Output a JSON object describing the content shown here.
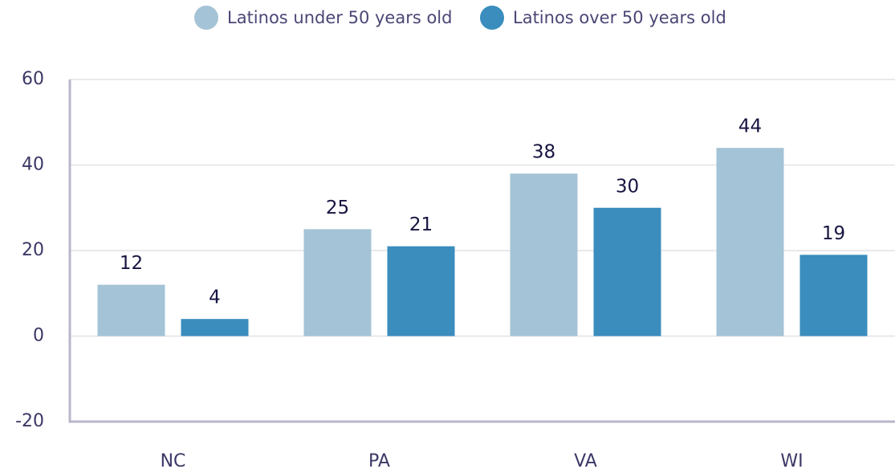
{
  "chart_data": {
    "type": "bar",
    "categories": [
      "NC",
      "PA",
      "VA",
      "WI"
    ],
    "series": [
      {
        "name": "Latinos under 50 years old",
        "color": "#a4c3d6",
        "values": [
          12,
          25,
          38,
          44
        ]
      },
      {
        "name": "Latinos over 50 years old",
        "color": "#3a8dbd",
        "values": [
          4,
          21,
          30,
          19
        ]
      }
    ],
    "ylim": [
      -20,
      60
    ],
    "yticks": [
      -20,
      0,
      20,
      40,
      60
    ],
    "grid": true,
    "legend": "top"
  }
}
